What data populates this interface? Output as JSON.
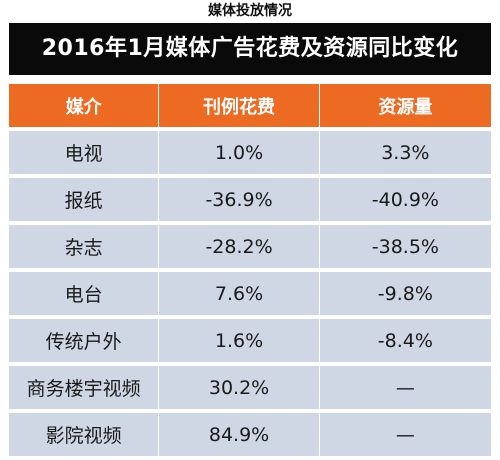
{
  "caption": "媒体投放情况",
  "banner_title": "2016年1月媒体广告花费及资源同比变化",
  "table": {
    "headers": [
      "媒介",
      "刊例花费",
      "资源量"
    ],
    "rows": [
      [
        "电视",
        "1.0%",
        "3.3%"
      ],
      [
        "报纸",
        "-36.9%",
        "-40.9%"
      ],
      [
        "杂志",
        "-28.2%",
        "-38.5%"
      ],
      [
        "电台",
        "7.6%",
        "-9.8%"
      ],
      [
        "传统户外",
        "1.6%",
        "-8.4%"
      ],
      [
        "商务楼宇视频",
        "30.2%",
        "—"
      ],
      [
        "影院视频",
        "84.9%",
        "—"
      ]
    ]
  },
  "colors": {
    "header_bg": "#ec6a22",
    "row_bg": "#cfd6e4",
    "banner_bg": "#0a0a0a"
  }
}
